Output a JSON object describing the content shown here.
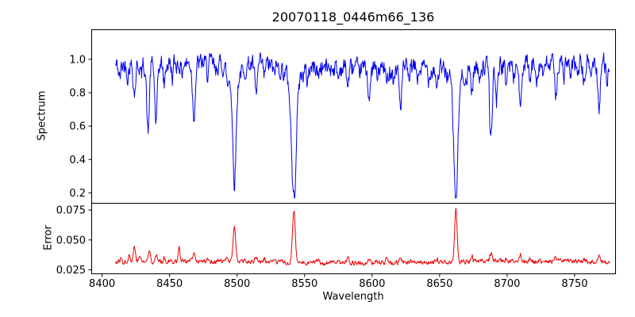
{
  "chart_data": {
    "type": "line",
    "title": "20070118_0446m66_136",
    "xlabel": "Wavelength",
    "xlim": [
      8392,
      8780
    ],
    "xticks": [
      8400,
      8450,
      8500,
      8550,
      8600,
      8650,
      8700,
      8750
    ],
    "xtick_labels": [
      "8400",
      "8450",
      "8500",
      "8550",
      "8600",
      "8650",
      "8700",
      "8750"
    ],
    "x_range_data": [
      8410,
      8776
    ],
    "sample_step": 0.35,
    "grid": false,
    "legend": "none",
    "panels": [
      {
        "name": "spectrum",
        "ylabel": "Spectrum",
        "ylim": [
          0.14,
          1.18
        ],
        "yticks": [
          0.2,
          0.4,
          0.6,
          0.8,
          1.0
        ],
        "ytick_labels": [
          "0.2",
          "0.4",
          "0.6",
          "0.8",
          "1.0"
        ],
        "line_color": "#0000ee",
        "baseline": 0.96,
        "noise_amp": 0.09,
        "absorption_lines": [
          [
            8413,
            0.08,
            0.7
          ],
          [
            8419,
            0.06,
            0.6
          ],
          [
            8424,
            0.17,
            0.8
          ],
          [
            8429,
            0.07,
            0.6
          ],
          [
            8434,
            0.42,
            0.9
          ],
          [
            8440,
            0.36,
            0.9
          ],
          [
            8446,
            0.13,
            0.7
          ],
          [
            8452,
            0.08,
            0.6
          ],
          [
            8459,
            0.06,
            0.6
          ],
          [
            8468,
            0.31,
            1.0
          ],
          [
            8478,
            0.06,
            0.6
          ],
          [
            8484,
            0.07,
            0.6
          ],
          [
            8493,
            0.09,
            0.7
          ],
          [
            8498,
            0.62,
            1.3
          ],
          [
            8498,
            0.08,
            4.5
          ],
          [
            8505,
            0.07,
            0.6
          ],
          [
            8514,
            0.19,
            0.9
          ],
          [
            8520,
            0.08,
            0.6
          ],
          [
            8527,
            0.06,
            0.6
          ],
          [
            8542,
            0.72,
            1.7
          ],
          [
            8542,
            0.08,
            6.0
          ],
          [
            8552,
            0.07,
            0.6
          ],
          [
            8560,
            0.06,
            0.6
          ],
          [
            8575,
            0.07,
            0.6
          ],
          [
            8582,
            0.11,
            0.7
          ],
          [
            8590,
            0.06,
            0.6
          ],
          [
            8598,
            0.18,
            0.9
          ],
          [
            8604,
            0.07,
            0.6
          ],
          [
            8611,
            0.11,
            0.7
          ],
          [
            8616,
            0.07,
            0.6
          ],
          [
            8621,
            0.22,
            0.9
          ],
          [
            8627,
            0.08,
            0.6
          ],
          [
            8634,
            0.07,
            0.6
          ],
          [
            8642,
            0.06,
            0.6
          ],
          [
            8648,
            0.11,
            0.7
          ],
          [
            8662,
            0.72,
            1.5
          ],
          [
            8662,
            0.08,
            5.0
          ],
          [
            8670,
            0.08,
            0.6
          ],
          [
            8674,
            0.14,
            0.7
          ],
          [
            8679,
            0.07,
            0.6
          ],
          [
            8688,
            0.46,
            0.9
          ],
          [
            8692,
            0.22,
            0.7
          ],
          [
            8699,
            0.1,
            0.6
          ],
          [
            8705,
            0.07,
            0.6
          ],
          [
            8710,
            0.27,
            0.9
          ],
          [
            8717,
            0.11,
            0.7
          ],
          [
            8722,
            0.07,
            0.6
          ],
          [
            8727,
            0.09,
            0.6
          ],
          [
            8736,
            0.17,
            0.8
          ],
          [
            8742,
            0.07,
            0.6
          ],
          [
            8747,
            0.11,
            0.7
          ],
          [
            8752,
            0.07,
            0.6
          ],
          [
            8757,
            0.13,
            0.7
          ],
          [
            8762,
            0.07,
            0.6
          ],
          [
            8768,
            0.25,
            0.9
          ],
          [
            8774,
            0.1,
            0.7
          ]
        ]
      },
      {
        "name": "error",
        "ylabel": "Error",
        "ylim": [
          0.022,
          0.081
        ],
        "yticks": [
          0.025,
          0.05,
          0.075
        ],
        "ytick_labels": [
          "0.025",
          "0.050",
          "0.075"
        ],
        "line_color": "#ee0000",
        "baseline": 0.0315,
        "noise_amp": 0.003,
        "error_peaks": [
          [
            8414,
            0.003,
            0.6
          ],
          [
            8420,
            0.006,
            0.7
          ],
          [
            8424,
            0.013,
            0.8
          ],
          [
            8428,
            0.005,
            0.6
          ],
          [
            8435,
            0.009,
            0.8
          ],
          [
            8440,
            0.006,
            0.7
          ],
          [
            8446,
            0.004,
            0.6
          ],
          [
            8457,
            0.013,
            0.6
          ],
          [
            8468,
            0.006,
            0.9
          ],
          [
            8478,
            0.003,
            0.6
          ],
          [
            8493,
            0.004,
            0.7
          ],
          [
            8498,
            0.029,
            1.0
          ],
          [
            8514,
            0.005,
            0.8
          ],
          [
            8520,
            0.003,
            0.6
          ],
          [
            8542,
            0.044,
            1.0
          ],
          [
            8560,
            0.002,
            0.6
          ],
          [
            8582,
            0.004,
            0.7
          ],
          [
            8598,
            0.004,
            0.7
          ],
          [
            8611,
            0.003,
            0.6
          ],
          [
            8621,
            0.004,
            0.7
          ],
          [
            8648,
            0.003,
            0.6
          ],
          [
            8662,
            0.045,
            0.9
          ],
          [
            8674,
            0.005,
            0.7
          ],
          [
            8688,
            0.007,
            0.8
          ],
          [
            8699,
            0.003,
            0.6
          ],
          [
            8710,
            0.005,
            0.8
          ],
          [
            8717,
            0.003,
            0.6
          ],
          [
            8736,
            0.004,
            0.7
          ],
          [
            8747,
            0.003,
            0.6
          ],
          [
            8757,
            0.003,
            0.6
          ],
          [
            8768,
            0.005,
            0.8
          ]
        ]
      }
    ]
  }
}
